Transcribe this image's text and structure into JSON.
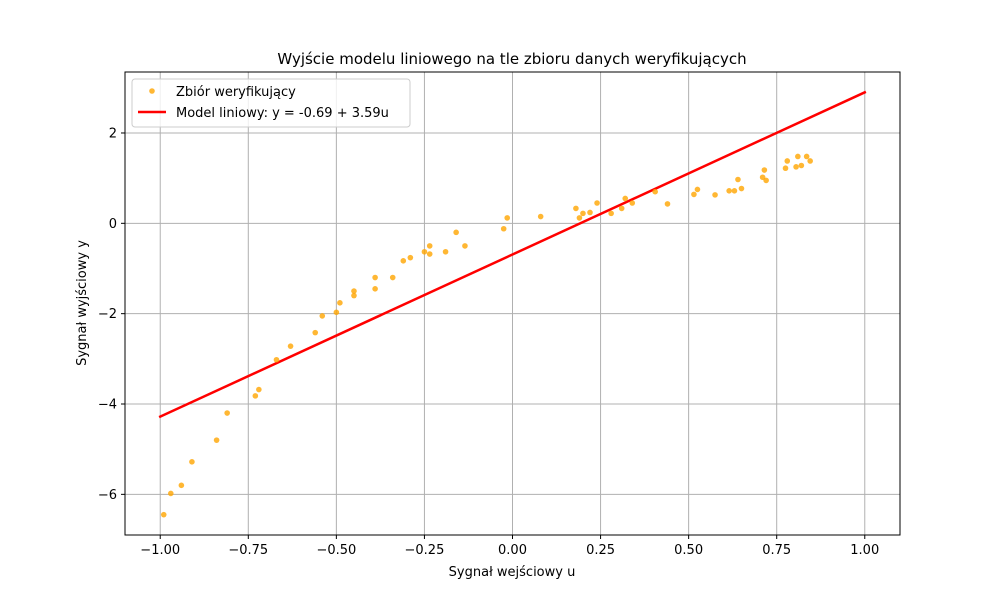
{
  "chart_data": {
    "type": "scatter",
    "title": "Wyjście modelu liniowego na tle zbioru danych weryfikujących",
    "xlabel": "Sygnał wejściowy u",
    "ylabel": "Sygnał wyjściowy y",
    "xlim": [
      -1.1,
      1.1
    ],
    "ylim": [
      -6.9,
      3.35
    ],
    "xticks": [
      -1.0,
      -0.75,
      -0.5,
      -0.25,
      0.0,
      0.25,
      0.5,
      0.75,
      1.0
    ],
    "xtick_labels": [
      "−1.00",
      "−0.75",
      "−0.50",
      "−0.25",
      "0.00",
      "0.25",
      "0.50",
      "0.75",
      "1.00"
    ],
    "yticks": [
      -6,
      -4,
      -2,
      0,
      2
    ],
    "ytick_labels": [
      "−6",
      "−4",
      "−2",
      "0",
      "2"
    ],
    "grid": true,
    "legend_position": "top-left",
    "colors": {
      "scatter": "#ffa500",
      "line": "#ff0000",
      "grid": "#b0b0b0"
    },
    "series": [
      {
        "name": "Zbiór weryfikujący",
        "kind": "scatter",
        "points": [
          [
            -0.99,
            -6.45
          ],
          [
            -0.97,
            -5.98
          ],
          [
            -0.94,
            -5.8
          ],
          [
            -0.91,
            -5.28
          ],
          [
            -0.84,
            -4.8
          ],
          [
            -0.81,
            -4.2
          ],
          [
            -0.73,
            -3.82
          ],
          [
            -0.72,
            -3.68
          ],
          [
            -0.67,
            -3.02
          ],
          [
            -0.63,
            -2.72
          ],
          [
            -0.56,
            -2.42
          ],
          [
            -0.54,
            -2.05
          ],
          [
            -0.5,
            -1.97
          ],
          [
            -0.49,
            -1.76
          ],
          [
            -0.45,
            -1.5
          ],
          [
            -0.45,
            -1.6
          ],
          [
            -0.39,
            -1.2
          ],
          [
            -0.39,
            -1.45
          ],
          [
            -0.34,
            -1.2
          ],
          [
            -0.31,
            -0.83
          ],
          [
            -0.29,
            -0.76
          ],
          [
            -0.25,
            -0.63
          ],
          [
            -0.235,
            -0.5
          ],
          [
            -0.235,
            -0.68
          ],
          [
            -0.19,
            -0.63
          ],
          [
            -0.16,
            -0.2
          ],
          [
            -0.135,
            -0.5
          ],
          [
            -0.025,
            -0.12
          ],
          [
            -0.015,
            0.12
          ],
          [
            0.08,
            0.15
          ],
          [
            0.18,
            0.33
          ],
          [
            0.19,
            0.12
          ],
          [
            0.2,
            0.22
          ],
          [
            0.22,
            0.24
          ],
          [
            0.24,
            0.45
          ],
          [
            0.28,
            0.22
          ],
          [
            0.31,
            0.33
          ],
          [
            0.32,
            0.55
          ],
          [
            0.34,
            0.45
          ],
          [
            0.405,
            0.7
          ],
          [
            0.44,
            0.43
          ],
          [
            0.515,
            0.64
          ],
          [
            0.525,
            0.75
          ],
          [
            0.575,
            0.63
          ],
          [
            0.615,
            0.72
          ],
          [
            0.63,
            0.72
          ],
          [
            0.64,
            0.97
          ],
          [
            0.65,
            0.77
          ],
          [
            0.71,
            1.02
          ],
          [
            0.715,
            1.18
          ],
          [
            0.72,
            0.95
          ],
          [
            0.775,
            1.22
          ],
          [
            0.78,
            1.38
          ],
          [
            0.805,
            1.25
          ],
          [
            0.81,
            1.48
          ],
          [
            0.82,
            1.28
          ],
          [
            0.835,
            1.48
          ],
          [
            0.845,
            1.38
          ]
        ]
      },
      {
        "name": "Model liniowy: y = -0.69 + 3.59u",
        "kind": "line",
        "intercept": -0.69,
        "slope": 3.59,
        "x": [
          -1.0,
          1.0
        ]
      }
    ]
  }
}
